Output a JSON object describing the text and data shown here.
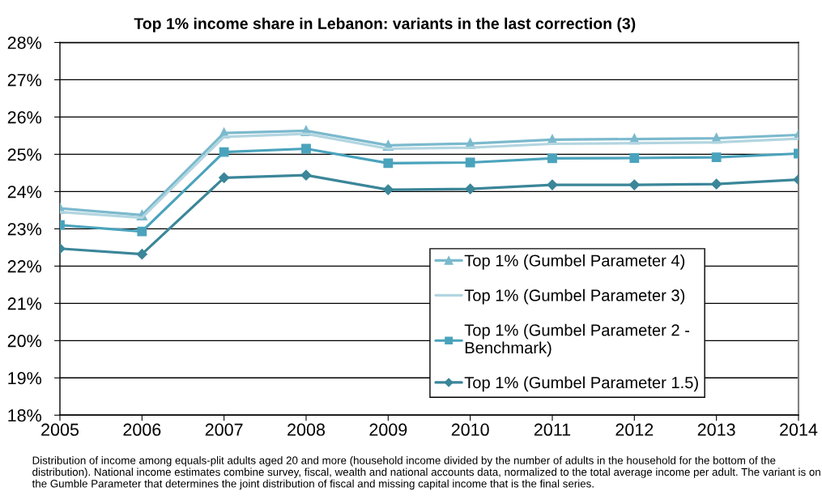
{
  "chart_data": {
    "type": "line",
    "title": "Top 1% income share in Lebanon: variants in the last correction (3)",
    "x": [
      2005,
      2006,
      2007,
      2008,
      2009,
      2010,
      2011,
      2012,
      2013,
      2014
    ],
    "series": [
      {
        "name": "Top 1% (Gumbel Parameter 4)",
        "color": "#7bb9cd",
        "marker": "triangle",
        "values": [
          23.55,
          23.37,
          25.57,
          25.63,
          25.24,
          25.29,
          25.39,
          25.41,
          25.43,
          25.52
        ]
      },
      {
        "name": "Top 1% (Gumbel Parameter 3)",
        "color": "#b2d5e0",
        "marker": "none",
        "values": [
          23.45,
          23.3,
          25.47,
          25.55,
          25.15,
          25.18,
          25.28,
          25.3,
          25.32,
          25.42
        ]
      },
      {
        "name": "Top 1% (Gumbel Parameter 2 -\nBenchmark)",
        "color": "#4aa3bc",
        "marker": "square",
        "values": [
          23.1,
          22.93,
          25.06,
          25.15,
          24.76,
          24.78,
          24.89,
          24.9,
          24.92,
          25.02
        ]
      },
      {
        "name": "Top 1% (Gumbel Parameter 1.5)",
        "color": "#3b8699",
        "marker": "diamond",
        "values": [
          22.47,
          22.32,
          24.37,
          24.44,
          24.05,
          24.07,
          24.18,
          24.18,
          24.2,
          24.32
        ]
      }
    ],
    "xlim": [
      2005,
      2014
    ],
    "xticks": [
      2005,
      2006,
      2007,
      2008,
      2009,
      2010,
      2011,
      2012,
      2013,
      2014
    ],
    "ylim": [
      18,
      28
    ],
    "yticks": [
      {
        "value": 18,
        "label": "18%"
      },
      {
        "value": 19,
        "label": "19%"
      },
      {
        "value": 20,
        "label": "20%"
      },
      {
        "value": 21,
        "label": "21%"
      },
      {
        "value": 22,
        "label": "22%"
      },
      {
        "value": 23,
        "label": "23%"
      },
      {
        "value": 24,
        "label": "24%"
      },
      {
        "value": 25,
        "label": "25%"
      },
      {
        "value": 26,
        "label": "26%"
      },
      {
        "value": 27,
        "label": "27%"
      },
      {
        "value": 28,
        "label": "28%"
      }
    ],
    "grid": "y",
    "legend": "bottom right",
    "line_style": "solid",
    "annotations": [
      "Distribution of income among equals-plit adults aged 20 and more (household income divided by the number of adults in the household for the bottom of the distribution). National income estimates combine survey, fiscal, wealth and national accounts data, normalized to the total average income per adult. The variant is on the Gumble Parameter that determines the joint distribution of fiscal and missing capital income that is the final series."
    ]
  }
}
